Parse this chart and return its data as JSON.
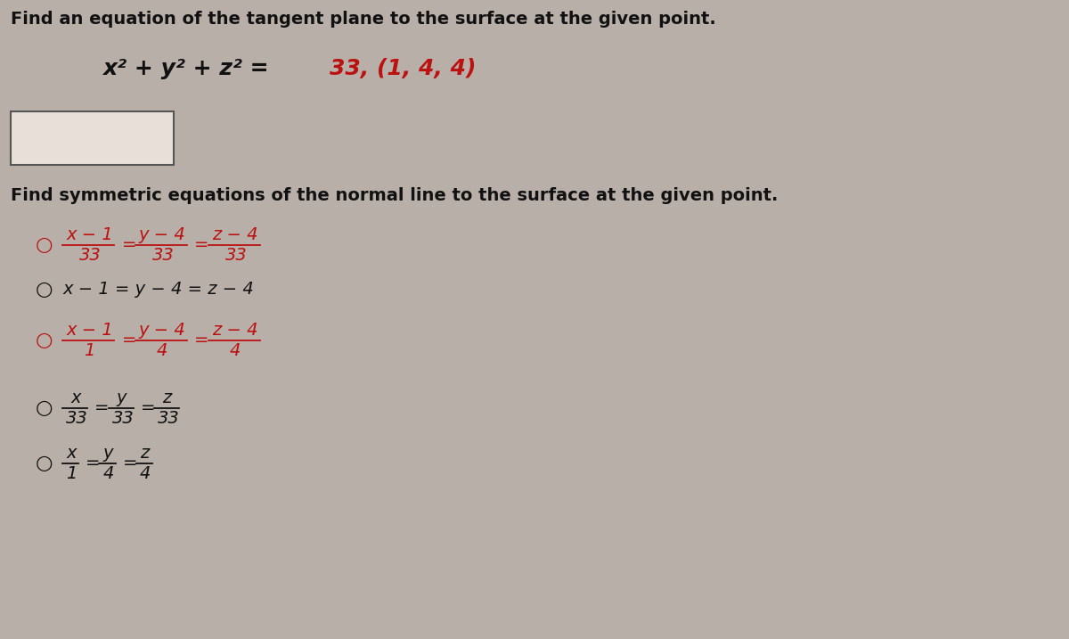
{
  "background_color": "#b8b0a8",
  "title1": "Find an equation of the tangent plane to the surface at the given point.",
  "eq_black": "x² + y² + z² = ",
  "eq_red": "33, (1, 4, 4)",
  "title2": "Find symmetric equations of the normal line to the surface at the given point.",
  "options": [
    {
      "label": "○",
      "type": "fraction",
      "color": "red",
      "parts": [
        {
          "num": "x − 1",
          "den": "33"
        },
        {
          "num": "y − 4",
          "den": "33"
        },
        {
          "num": "z − 4",
          "den": "33"
        }
      ]
    },
    {
      "label": "○",
      "type": "inline",
      "color": "black",
      "text": "x − 1 = y − 4 = z − 4"
    },
    {
      "label": "○",
      "type": "fraction",
      "color": "red",
      "parts": [
        {
          "num": "x − 1",
          "den": "1"
        },
        {
          "num": "y − 4",
          "den": "4"
        },
        {
          "num": "z − 4",
          "den": "4"
        }
      ]
    },
    {
      "label": "○",
      "type": "fraction",
      "color": "black",
      "parts": [
        {
          "num": "x",
          "den": "33"
        },
        {
          "num": "y",
          "den": "33"
        },
        {
          "num": "z",
          "den": "33"
        }
      ]
    },
    {
      "label": "○",
      "type": "fraction",
      "color": "black",
      "parts": [
        {
          "num": "x",
          "den": "1"
        },
        {
          "num": "y",
          "den": "4"
        },
        {
          "num": "z",
          "den": "4"
        }
      ]
    }
  ],
  "text_color": "#111111",
  "red_color": "#bb1111",
  "box_color": "#e8e0d8",
  "font_size_title": 14,
  "font_size_eq": 16,
  "font_size_option": 14
}
